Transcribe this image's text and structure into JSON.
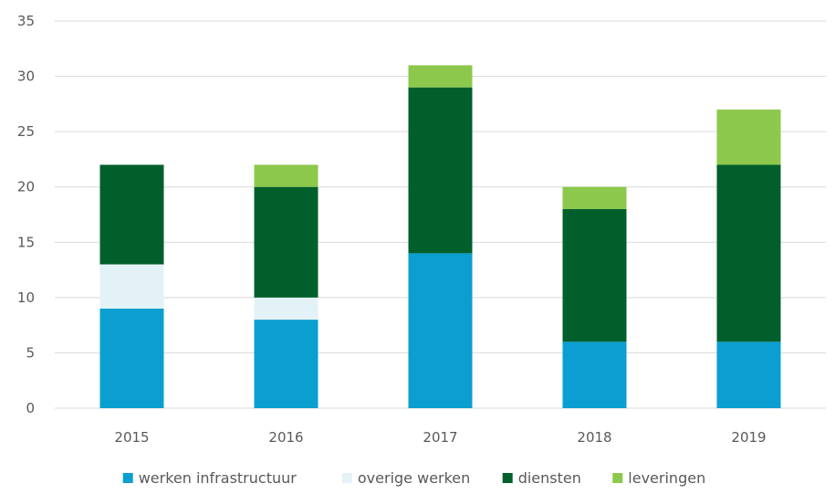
{
  "chart_data": {
    "type": "bar",
    "stacked": true,
    "categories": [
      "2015",
      "2016",
      "2017",
      "2018",
      "2019"
    ],
    "series": [
      {
        "name": "werken infrastructuur",
        "color": "#0a9fd0",
        "values": [
          9,
          8,
          14,
          6,
          6
        ]
      },
      {
        "name": "overige werken",
        "color": "#e3f2f6",
        "values": [
          4,
          2,
          0,
          0,
          0
        ]
      },
      {
        "name": "diensten",
        "color": "#005f2b",
        "values": [
          9,
          10,
          15,
          12,
          16
        ]
      },
      {
        "name": "leveringen",
        "color": "#8cc84b",
        "values": [
          0,
          2,
          2,
          2,
          5
        ]
      }
    ],
    "ylim": [
      0,
      35
    ],
    "yticks": [
      "0",
      "5",
      "10",
      "15",
      "20",
      "25",
      "30",
      "35"
    ],
    "grid": true,
    "legend_position": "bottom"
  }
}
